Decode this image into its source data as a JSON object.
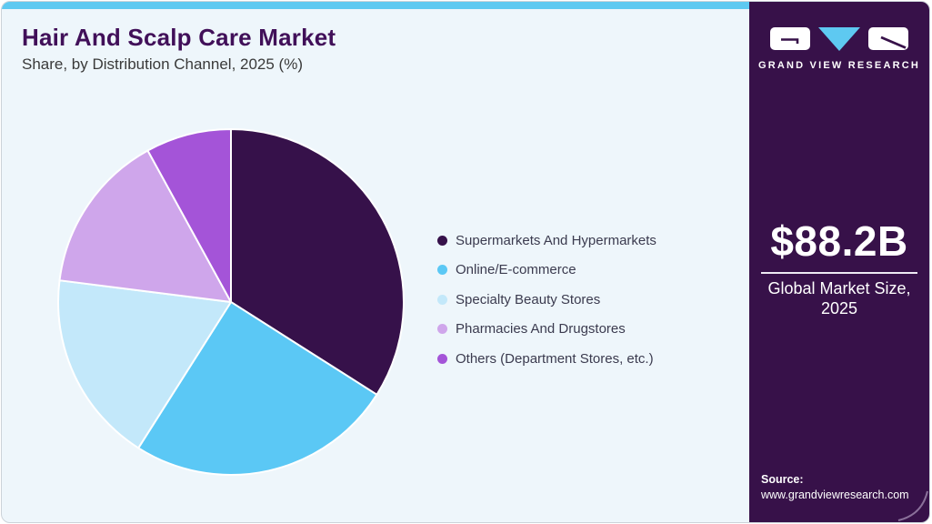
{
  "header": {
    "title": "Hair And Scalp Care Market",
    "subtitle": "Share, by Distribution Channel, 2025 (%)"
  },
  "chart_data": {
    "type": "pie",
    "title": "Hair And Scalp Care Market Share, by Distribution Channel, 2025 (%)",
    "unit": "%",
    "start_angle_deg": 0,
    "direction": "clockwise",
    "legend_position": "right",
    "values_note": "percentages estimated from slice arc angles; no numeric labels shown in figure",
    "slices": [
      {
        "label": "Supermarkets And Hypermarkets",
        "value": 34,
        "color": "#36114a"
      },
      {
        "label": "Online/E-commerce",
        "value": 25,
        "color": "#5bc8f5"
      },
      {
        "label": "Specialty Beauty Stores",
        "value": 18,
        "color": "#c3e8fa"
      },
      {
        "label": "Pharmacies And Drugstores",
        "value": 15,
        "color": "#cfa6eb"
      },
      {
        "label": "Others (Department Stores, etc.)",
        "value": 8,
        "color": "#a454d8"
      }
    ]
  },
  "sidebar": {
    "brand_name": "GRAND VIEW RESEARCH",
    "market_size": "$88.2B",
    "market_size_label": "Global Market Size, 2025",
    "source_label": "Source:",
    "source_url": "www.grandviewresearch.com"
  },
  "theme": {
    "accent_cyan": "#5ec9f1",
    "brand_purple": "#371149",
    "title_purple": "#411059",
    "card_bg": "#eef6fb"
  }
}
